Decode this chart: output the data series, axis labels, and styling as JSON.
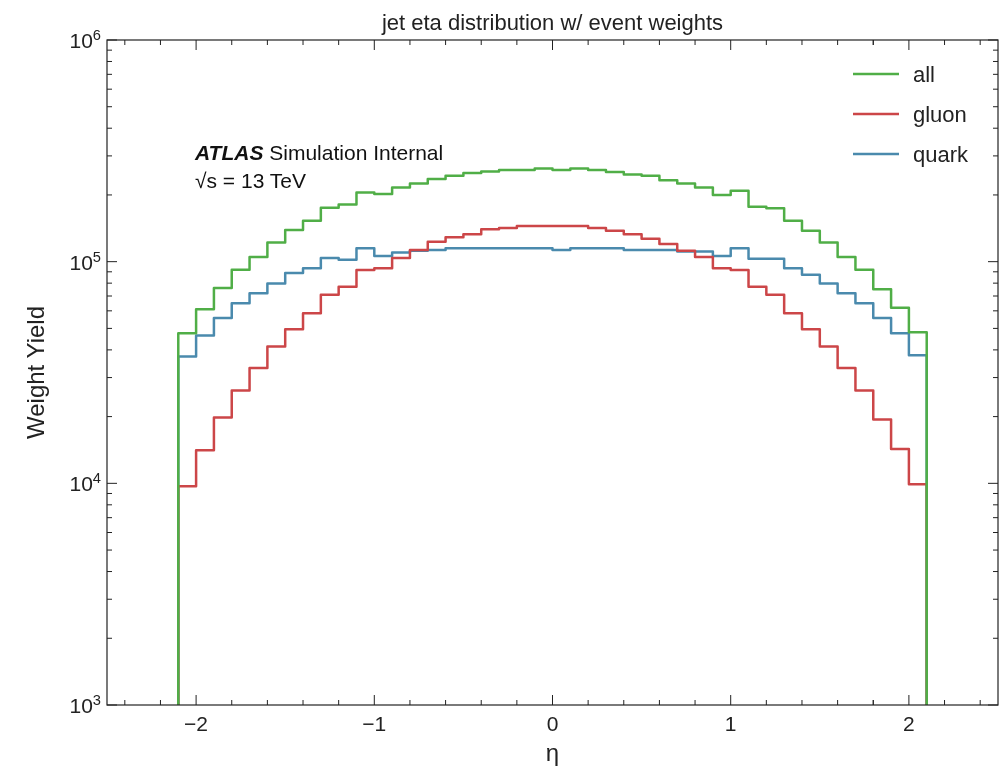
{
  "chart_data": {
    "type": "histogram",
    "title": "jet eta distribution w/ event weights",
    "xlabel": "η",
    "ylabel": "Weight Yield",
    "annotations": [
      "ATLAS Simulation Internal",
      "√s = 13 TeV"
    ],
    "bins": [
      -2.1,
      -2.0,
      -1.9,
      -1.8,
      -1.7,
      -1.6,
      -1.5,
      -1.4,
      -1.3,
      -1.2,
      -1.1,
      -1.0,
      -0.9,
      -0.8,
      -0.7,
      -0.6,
      -0.5,
      -0.4,
      -0.3,
      -0.2,
      -0.1,
      0,
      0.1,
      0.2,
      0.3,
      0.4,
      0.5,
      0.6,
      0.7,
      0.8,
      0.9,
      1.0,
      1.1,
      1.2,
      1.3,
      1.4,
      1.5,
      1.6,
      1.7,
      1.8,
      1.9,
      2.0,
      2.1
    ],
    "series": [
      {
        "name": "all",
        "color": "#50ae47",
        "values": [
          47500,
          61000,
          76000,
          92000,
          105000,
          122000,
          139000,
          153000,
          175000,
          181000,
          205000,
          202000,
          216000,
          225000,
          236000,
          244000,
          251000,
          255000,
          259000,
          259000,
          263000,
          259000,
          263000,
          259000,
          254000,
          247000,
          244000,
          233000,
          225000,
          216000,
          200000,
          209000,
          177000,
          174000,
          153000,
          138000,
          122000,
          105000,
          92000,
          75000,
          62000,
          48000
        ]
      },
      {
        "name": "gluon",
        "color": "#cc4648",
        "values": [
          9700,
          14100,
          19800,
          26200,
          33100,
          41400,
          49500,
          58500,
          71000,
          77000,
          91600,
          93300,
          104000,
          113000,
          123000,
          129000,
          133000,
          140000,
          142000,
          145000,
          145000,
          145000,
          145000,
          142000,
          138000,
          133000,
          127000,
          120000,
          112000,
          105000,
          93300,
          91600,
          77000,
          71000,
          58500,
          49500,
          41400,
          33100,
          26200,
          19400,
          14300,
          9900
        ]
      },
      {
        "name": "quark",
        "color": "#4a8aad",
        "values": [
          37300,
          46400,
          55700,
          64900,
          72000,
          79800,
          88900,
          93500,
          104000,
          102000,
          115000,
          106000,
          110000,
          112000,
          113000,
          115000,
          115000,
          115000,
          115000,
          115000,
          115000,
          113000,
          115000,
          115000,
          115000,
          113000,
          113000,
          113000,
          111000,
          111000,
          106000,
          115000,
          103000,
          103000,
          93500,
          87300,
          79800,
          72000,
          64900,
          55700,
          47500,
          37800
        ]
      }
    ],
    "xlim": [
      -2.5,
      2.5
    ],
    "xticks": [
      {
        "value": -2,
        "label": "−2"
      },
      {
        "value": -1,
        "label": "−1"
      },
      0,
      1,
      2
    ],
    "ylim": [
      1000,
      1000000
    ],
    "yticks": [
      {
        "value": 1000,
        "label": "10$^{3}$"
      },
      {
        "value": 10000,
        "label": "10$^{4}$"
      },
      {
        "value": 100000,
        "label": "10$^{5}$"
      },
      {
        "value": 1000000,
        "label": "10$^{6}$"
      }
    ],
    "log": "y",
    "grid": false,
    "legend": "top right"
  }
}
